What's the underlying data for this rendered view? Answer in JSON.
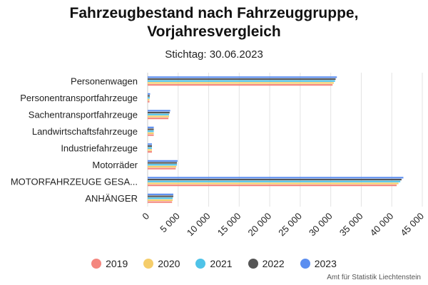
{
  "chart_data": {
    "type": "bar",
    "orientation": "horizontal",
    "title": "Fahrzeugbestand nach Fahrzeuggruppe, Vorjahresvergleich",
    "subtitle": "Stichtag: 30.06.2023",
    "categories": [
      "Personenwagen",
      "Personentransportfahrzeuge",
      "Sachentransportfahrzeuge",
      "Landwirtschaftsfahrzeuge",
      "Industriefahrzeuge",
      "Motorräder",
      "MOTORFAHRZEUGE GESA...",
      "ANHÄNGER"
    ],
    "series": [
      {
        "name": "2019",
        "color": "#f4877f",
        "values": [
          30300,
          300,
          3400,
          1000,
          700,
          4600,
          40800,
          4000
        ]
      },
      {
        "name": "2020",
        "color": "#f5cd6a",
        "values": [
          30500,
          300,
          3500,
          1000,
          700,
          4700,
          41100,
          4100
        ]
      },
      {
        "name": "2021",
        "color": "#4fc3e8",
        "values": [
          30700,
          350,
          3500,
          1000,
          700,
          4800,
          41400,
          4100
        ]
      },
      {
        "name": "2022",
        "color": "#555555",
        "values": [
          30800,
          350,
          3600,
          1000,
          700,
          4800,
          41600,
          4200
        ]
      },
      {
        "name": "2023",
        "color": "#5b8ef0",
        "values": [
          31000,
          400,
          3700,
          1000,
          700,
          4900,
          41900,
          4200
        ]
      }
    ],
    "x_ticks": [
      0,
      5000,
      10000,
      15000,
      20000,
      25000,
      30000,
      35000,
      40000,
      45000
    ],
    "x_tick_labels": [
      "0",
      "5 000",
      "10 000",
      "15 000",
      "20 000",
      "25 000",
      "30 000",
      "35 000",
      "40 000",
      "45 000"
    ],
    "xlim": [
      0,
      45000
    ],
    "grid": true,
    "legend_position": "bottom"
  },
  "credit": "Amt für Statistik Liechtenstein"
}
